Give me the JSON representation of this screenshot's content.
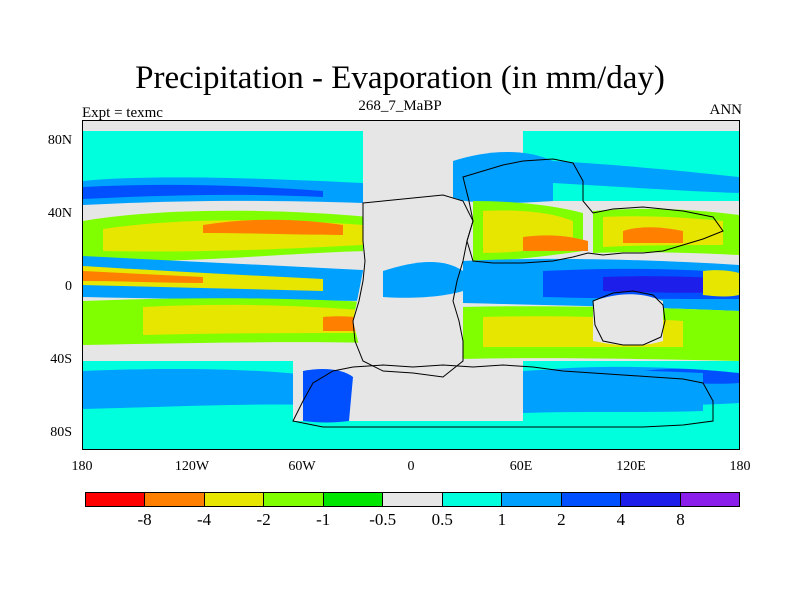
{
  "title": "Precipitation - Evaporation (in mm/day)",
  "subtitle": "268_7_MaBP",
  "left_label": "Expt = texmc",
  "right_label": "ANN",
  "y_ticks": [
    "80N",
    "40N",
    "0",
    "40S",
    "80S"
  ],
  "x_ticks": [
    "180",
    "120W",
    "60W",
    "0",
    "60E",
    "120E",
    "180"
  ],
  "colorbar": {
    "colors": [
      "#ff0000",
      "#ff8000",
      "#e6e600",
      "#80ff00",
      "#00e600",
      "#e6e6e6",
      "#00ffdc",
      "#00a0ff",
      "#0050ff",
      "#1e1eeb",
      "#8c1eeb"
    ],
    "labels": [
      "-8",
      "-4",
      "-2",
      "-1",
      "-0.5",
      "0.5",
      "1",
      "2",
      "4",
      "8"
    ]
  },
  "chart_data": {
    "type": "heatmap",
    "title": "Precipitation - Evaporation (in mm/day)",
    "subtitle": "268_7_MaBP",
    "experiment": "texmc",
    "season": "ANN",
    "units": "mm/day",
    "x_range": [
      -180,
      180
    ],
    "y_range": [
      -90,
      90
    ],
    "contour_levels": [
      -8,
      -4,
      -2,
      -1,
      -0.5,
      0.5,
      1,
      2,
      4,
      8
    ]
  }
}
